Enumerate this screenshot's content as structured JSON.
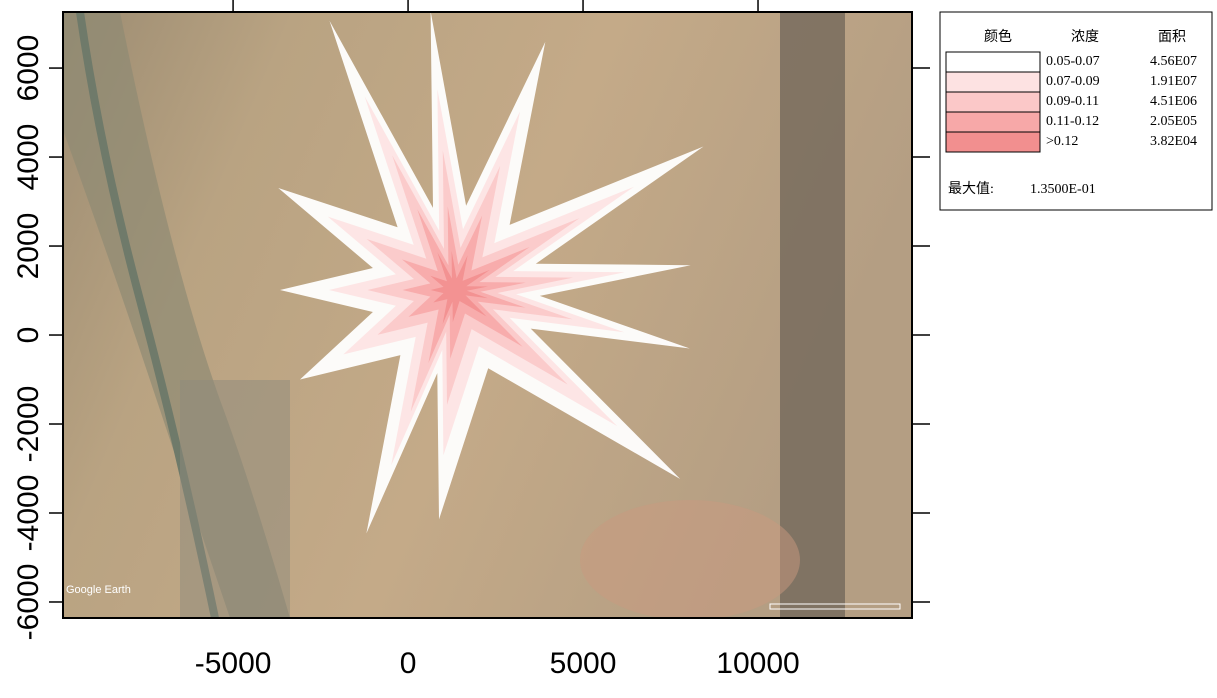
{
  "chart_data": {
    "type": "contour",
    "xlim": [
      -9860,
      14400
    ],
    "ylim": [
      -6360,
      7260
    ],
    "xticks": [
      -5000,
      0,
      5000,
      10000
    ],
    "yticks": [
      -6000,
      -4000,
      -2000,
      0,
      2000,
      4000,
      6000
    ],
    "attribution": "Google Earth",
    "legend": {
      "headers": [
        "颜色",
        "浓度",
        "面积"
      ],
      "rows": [
        {
          "color": "#ffffff",
          "range": "0.05-0.07",
          "area": "4.56E07"
        },
        {
          "color": "#fde2e2",
          "range": "0.07-0.09",
          "area": "1.91E07"
        },
        {
          "color": "#fbc8c8",
          "range": "0.09-0.11",
          "area": "4.51E06"
        },
        {
          "color": "#f7a8a8",
          "range": "0.11-0.12",
          "area": "2.05E05"
        },
        {
          "color": "#f28f8f",
          "range": ">0.12",
          "area": "3.82E04"
        }
      ],
      "max_label": "最大值:",
      "max_value": "1.3500E-01"
    }
  }
}
